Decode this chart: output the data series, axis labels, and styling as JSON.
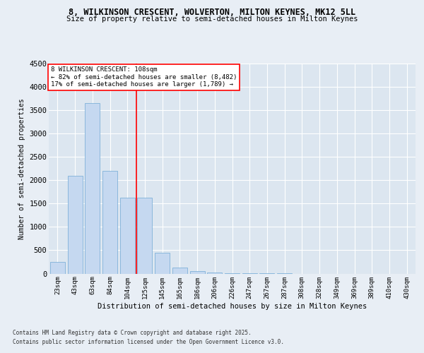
{
  "title1": "8, WILKINSON CRESCENT, WOLVERTON, MILTON KEYNES, MK12 5LL",
  "title2": "Size of property relative to semi-detached houses in Milton Keynes",
  "xlabel": "Distribution of semi-detached houses by size in Milton Keynes",
  "ylabel": "Number of semi-detached properties",
  "categories": [
    "23sqm",
    "43sqm",
    "63sqm",
    "84sqm",
    "104sqm",
    "125sqm",
    "145sqm",
    "165sqm",
    "186sqm",
    "206sqm",
    "226sqm",
    "247sqm",
    "267sqm",
    "287sqm",
    "308sqm",
    "328sqm",
    "349sqm",
    "369sqm",
    "389sqm",
    "410sqm",
    "430sqm"
  ],
  "values": [
    250,
    2100,
    3650,
    2200,
    1620,
    1620,
    450,
    130,
    50,
    30,
    5,
    2,
    1,
    1,
    0,
    0,
    0,
    0,
    0,
    0,
    0
  ],
  "bar_color": "#c5d8f0",
  "bar_edge_color": "#6fa8d4",
  "property_line_x": 4.5,
  "property_sqm": 108,
  "annotation_text_line1": "8 WILKINSON CRESCENT: 108sqm",
  "annotation_text_line2": "← 82% of semi-detached houses are smaller (8,482)",
  "annotation_text_line3": "17% of semi-detached houses are larger (1,789) →",
  "ylim": [
    0,
    4500
  ],
  "yticks": [
    0,
    500,
    1000,
    1500,
    2000,
    2500,
    3000,
    3500,
    4000,
    4500
  ],
  "background_color": "#e8eef5",
  "plot_background_color": "#dce6f0",
  "grid_color": "#ffffff",
  "footer_line1": "Contains HM Land Registry data © Crown copyright and database right 2025.",
  "footer_line2": "Contains public sector information licensed under the Open Government Licence v3.0."
}
